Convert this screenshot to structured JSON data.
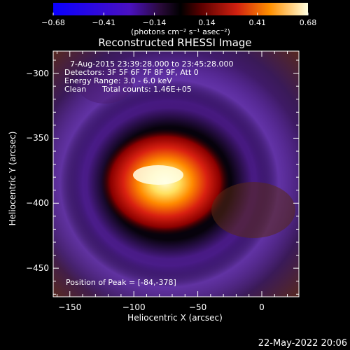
{
  "chart_data": {
    "type": "heatmap",
    "title": "Reconstructed RHESSI Image",
    "xlabel": "Heliocentric X (arcsec)",
    "ylabel": "Heliocentric Y (arcsec)",
    "xlim": [
      -163,
      29
    ],
    "ylim": [
      -472,
      -283
    ],
    "xticks": [
      -150,
      -100,
      -50,
      0
    ],
    "yticks": [
      -300,
      -350,
      -400,
      -450
    ],
    "colorbar": {
      "ticks": [
        "-0.68",
        "-0.41",
        "-0.14",
        "0.14",
        "0.41",
        "0.68"
      ],
      "range": [
        -0.68,
        0.68
      ],
      "units": "(photons cm⁻² s⁻¹ asec⁻²)"
    },
    "annotations": {
      "time_range": "7-Aug-2015 23:39:28.000 to 23:45:28.000",
      "detectors": "Detectors: 3F 5F 6F 7F 8F 9F, Att 0",
      "energy": "Energy Range: 3.0 - 6.0 keV",
      "method": "Clean",
      "counts": "Total counts: 1.46E+05",
      "peak": "Position of Peak = [-84,-378]"
    },
    "peak": {
      "x": -84,
      "y": -378,
      "value": 0.68
    },
    "footer": "22-May-2022 20:06"
  }
}
